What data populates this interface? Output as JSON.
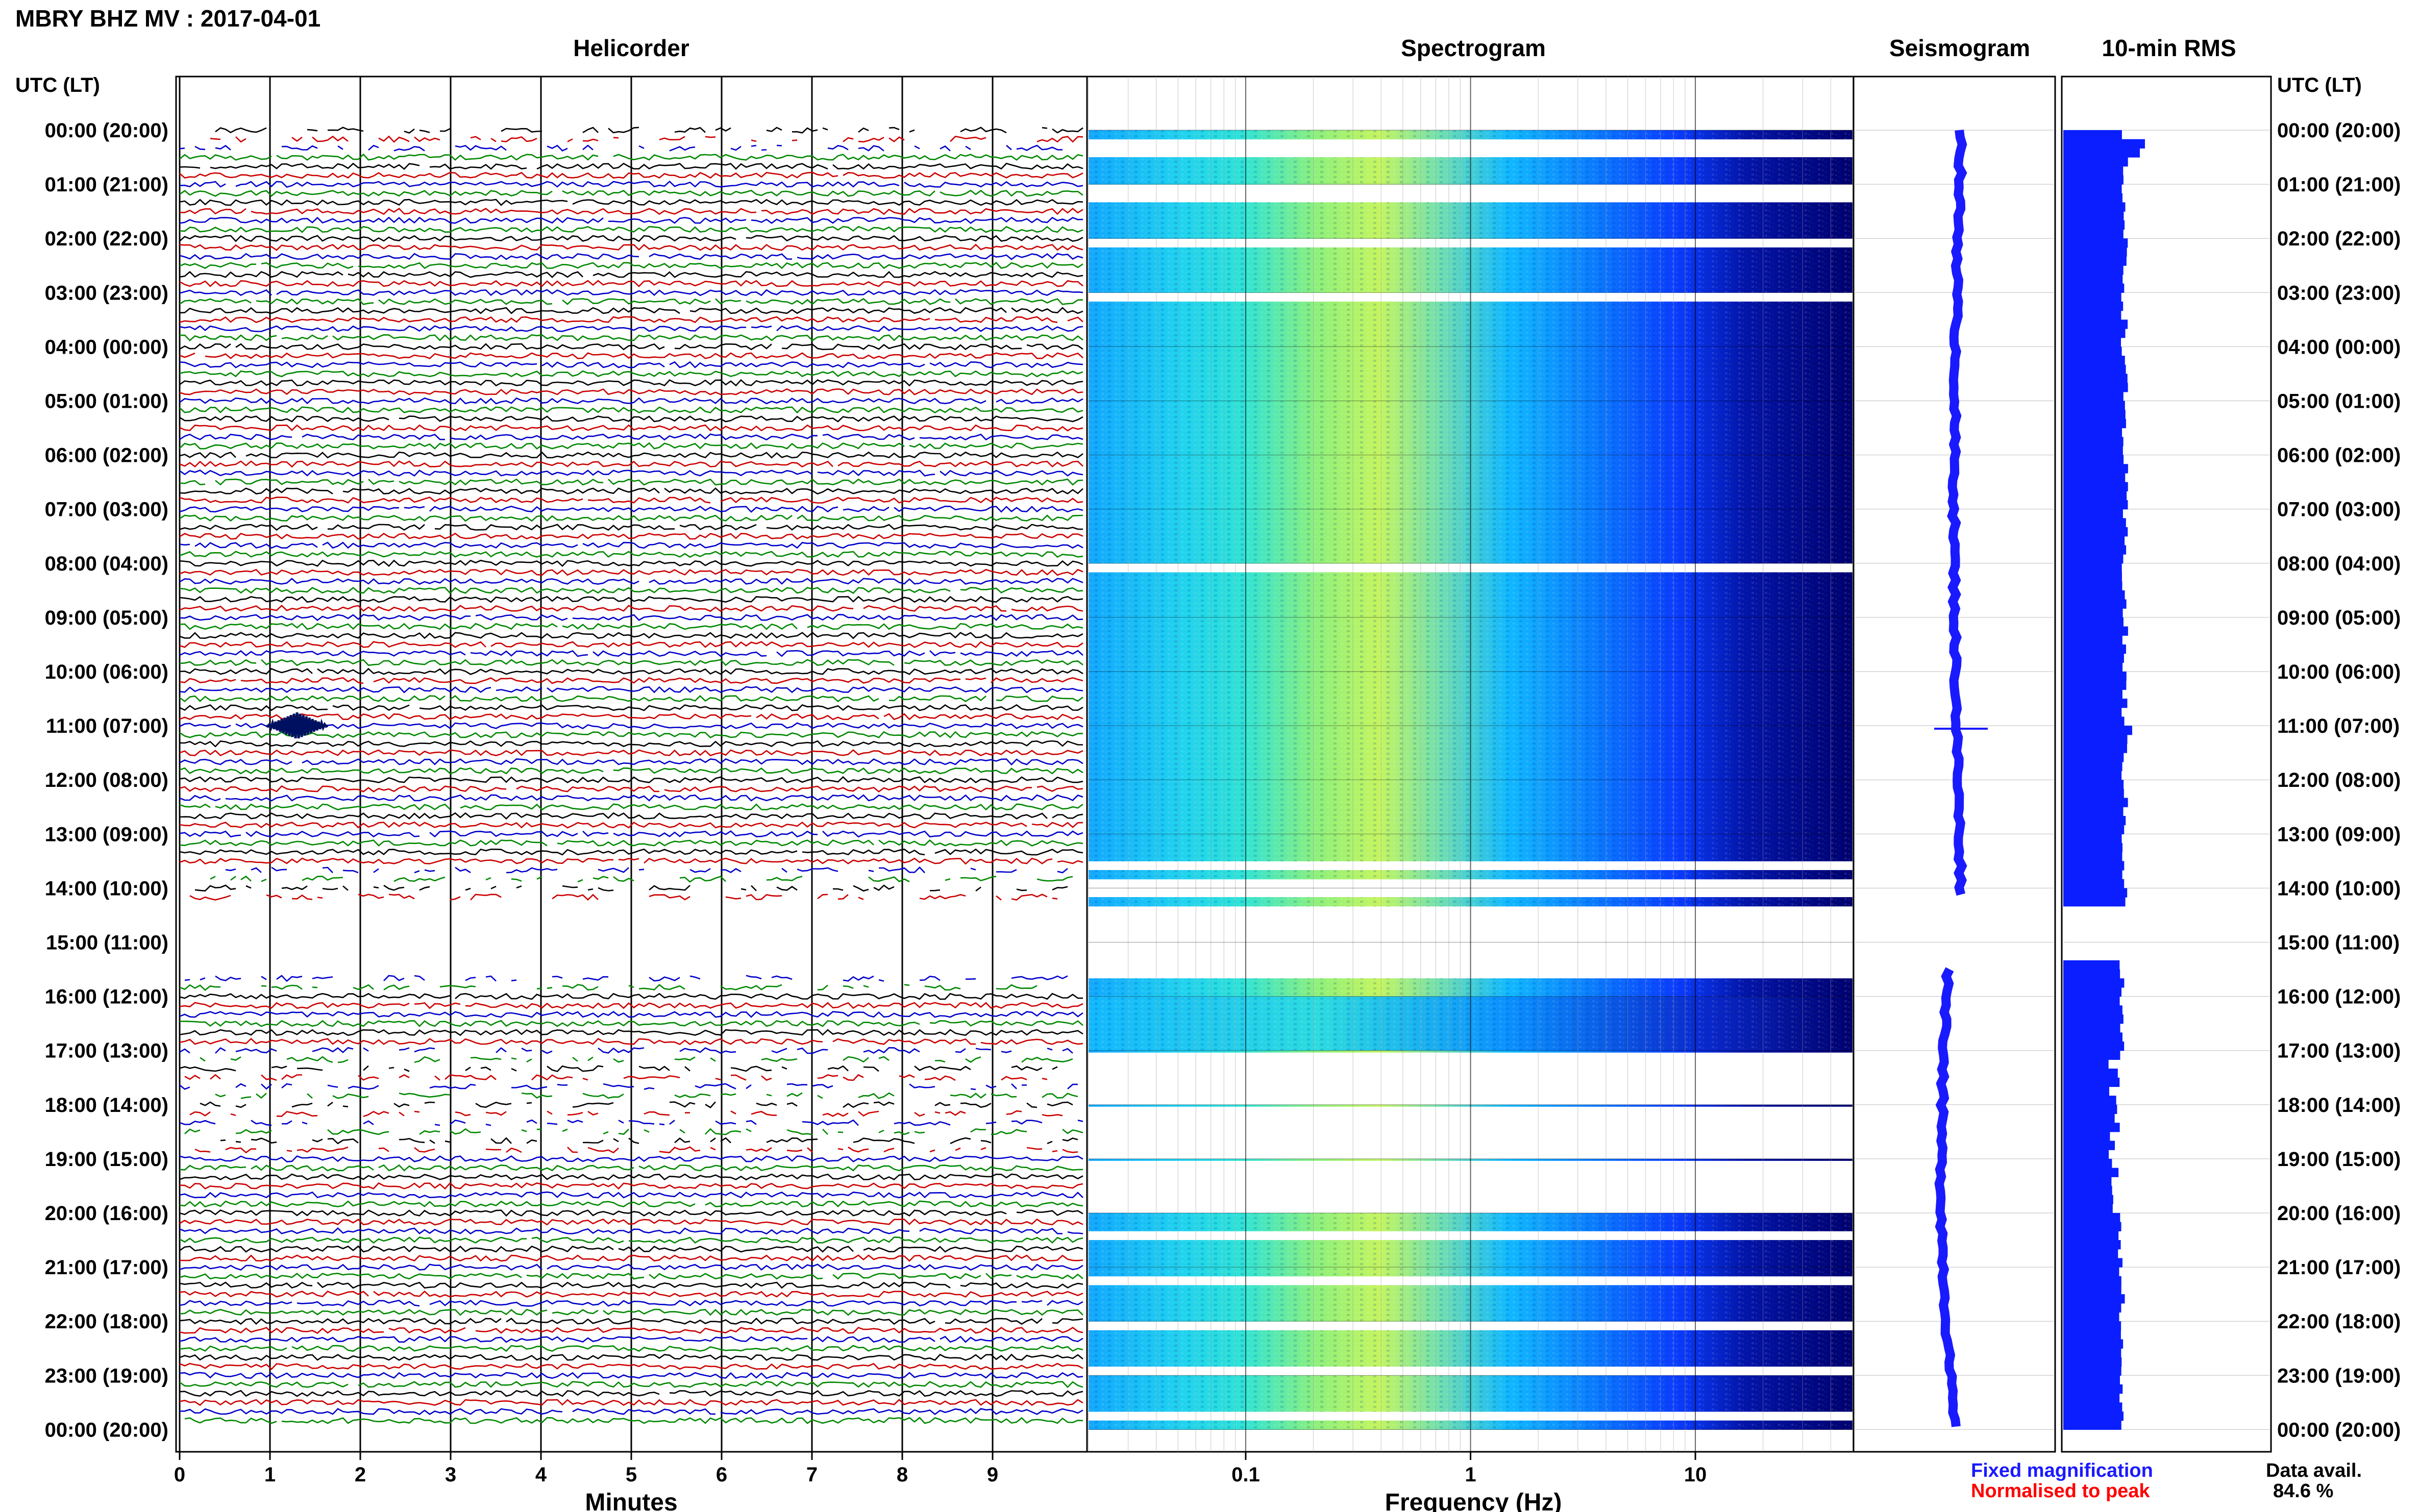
{
  "title": "MBRY BHZ MV : 2017-04-01",
  "time_axis_label": "UTC (LT)",
  "panels": {
    "helicorder": "Helicorder",
    "spectrogram": "Spectrogram",
    "seismogram": "Seismogram",
    "rms": "10-min RMS"
  },
  "chart_data": [
    {
      "type": "line",
      "panel": "helicorder",
      "title": "Helicorder",
      "xlabel": "Minutes",
      "ylabel": "UTC (LT)",
      "x_ticks": [
        0,
        1,
        2,
        3,
        4,
        5,
        6,
        7,
        8,
        9
      ],
      "xlim": [
        0,
        10
      ],
      "rows_per_hour": 6,
      "trace_colors": [
        "#000000",
        "#cc0000",
        "#0000cc",
        "#008800"
      ],
      "hour_labels": [
        "00:00 (20:00)",
        "01:00 (21:00)",
        "02:00 (22:00)",
        "03:00 (23:00)",
        "04:00 (00:00)",
        "05:00 (01:00)",
        "06:00 (02:00)",
        "07:00 (03:00)",
        "08:00 (04:00)",
        "09:00 (05:00)",
        "10:00 (06:00)",
        "11:00 (07:00)",
        "12:00 (08:00)",
        "13:00 (09:00)",
        "14:00 (10:00)",
        "15:00 (11:00)",
        "16:00 (12:00)",
        "17:00 (13:00)",
        "18:00 (14:00)",
        "19:00 (15:00)",
        "20:00 (16:00)",
        "21:00 (17:00)",
        "22:00 (18:00)",
        "23:00 (19:00)",
        "00:00 (20:00)"
      ],
      "gap_utc": [
        "14:10",
        "15:40"
      ],
      "event": {
        "time_utc": "11:00",
        "minute": 1.3
      }
    },
    {
      "type": "heatmap",
      "panel": "spectrogram",
      "title": "Spectrogram",
      "xlabel": "Frequency (Hz)",
      "x_scale": "log",
      "xlim": [
        0.02,
        50
      ],
      "x_ticks": [
        0.1,
        1,
        10
      ],
      "x_tick_labels": [
        "0.1",
        "1",
        "10"
      ],
      "colormap": [
        "#00006e",
        "#0019ff",
        "#00b4ff",
        "#3de0c8",
        "#c8f55a"
      ]
    },
    {
      "type": "line",
      "panel": "seismogram",
      "title": "Seismogram",
      "legend_fixed": "Fixed magnification",
      "legend_normalised": "Normalised to peak",
      "color_fixed": "#1a1aff",
      "color_normalised": "#ff0000"
    },
    {
      "type": "bar",
      "panel": "rms",
      "title": "10-min RMS",
      "color": "#0a1eff",
      "data_avail_label": "Data avail.",
      "data_avail_value": "84.6 %"
    }
  ]
}
